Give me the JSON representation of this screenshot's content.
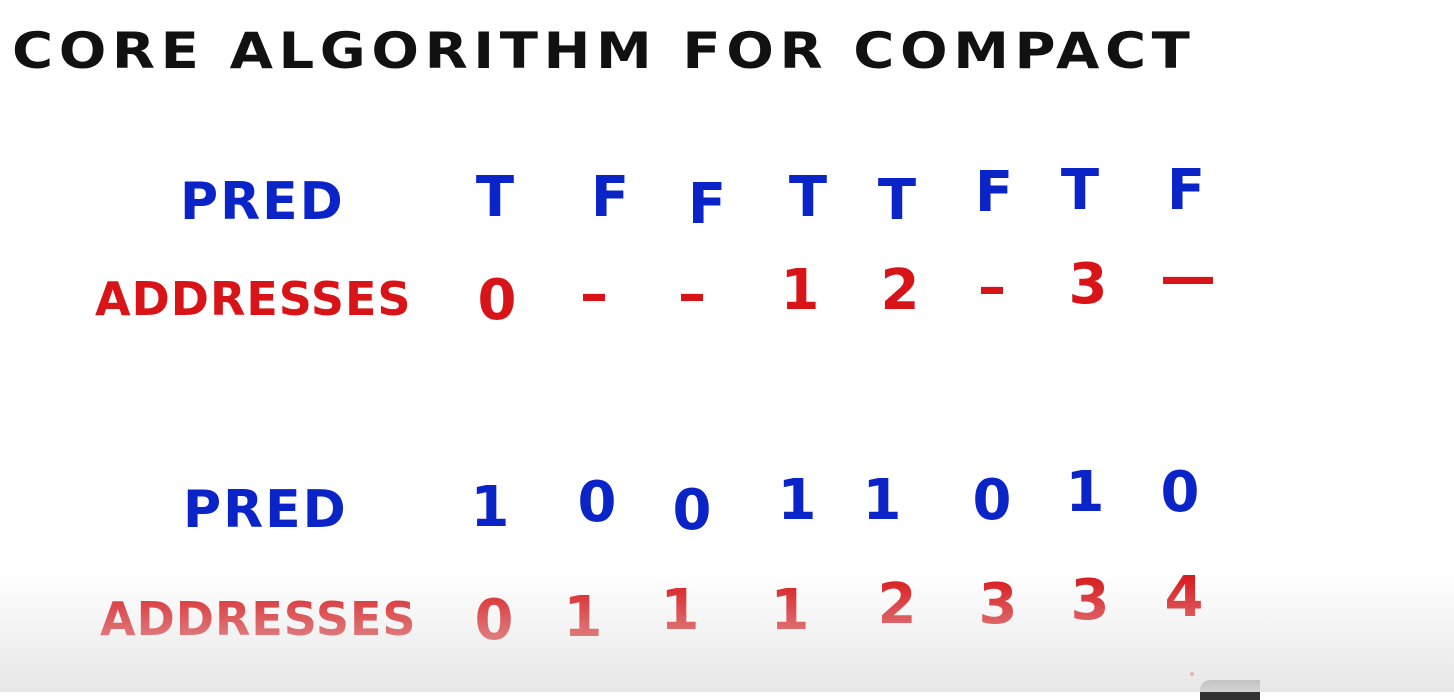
{
  "title": "CORE ALGORITHM FOR COMPACT",
  "colors": {
    "ink_black": "#111111",
    "ink_blue": "#0a24c8",
    "ink_red": "#d81418"
  },
  "table1": {
    "pred_label": "PRED",
    "addr_label": "ADDRESSES",
    "pred": [
      "T",
      "F",
      "F",
      "T",
      "T",
      "F",
      "T",
      "F"
    ],
    "addresses": [
      "0",
      "–",
      "–",
      "1",
      "2",
      "–",
      "3",
      "—"
    ]
  },
  "table2": {
    "pred_label": "PRED",
    "addr_label": "ADDRESSES",
    "pred": [
      "1",
      "0",
      "0",
      "1",
      "1",
      "0",
      "1",
      "0"
    ],
    "addresses": [
      "0",
      "1",
      "1",
      "1",
      "2",
      "3",
      "3",
      "4"
    ]
  }
}
